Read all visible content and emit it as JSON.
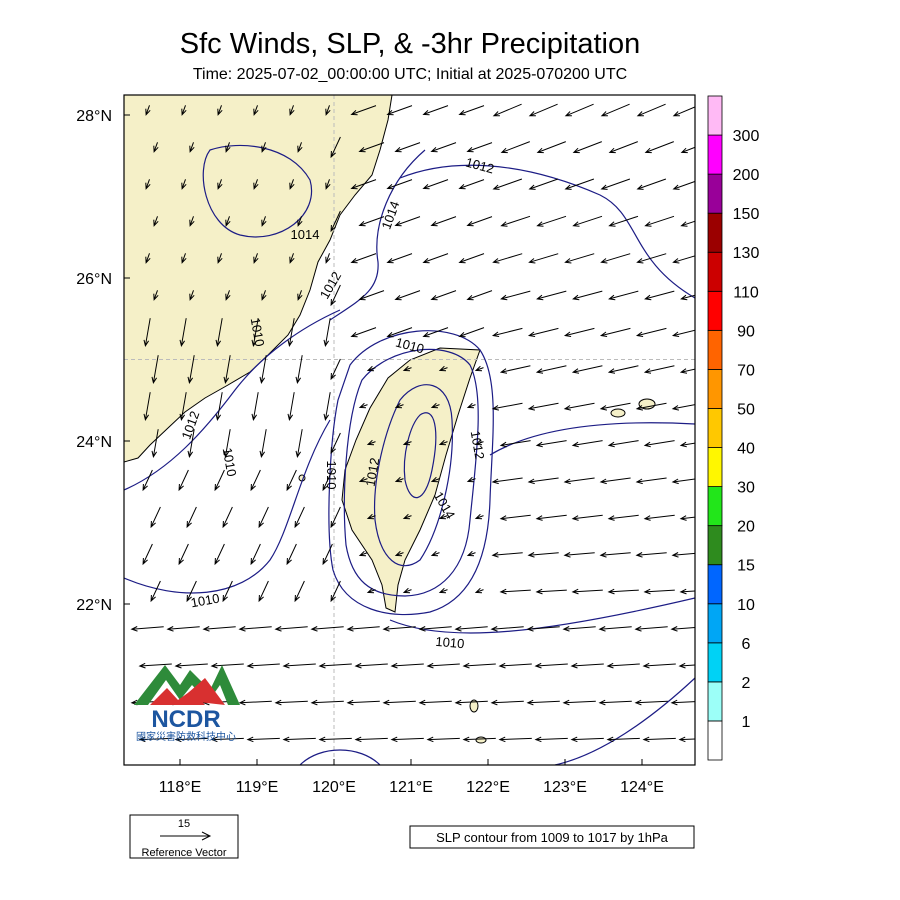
{
  "header": {
    "title": "Sfc Winds,  SLP, & -3hr Precipitation",
    "subtitle": "Time: 2025-07-02_00:00:00 UTC; Initial at 2025-070200 UTC"
  },
  "map": {
    "lat_labels": [
      {
        "value": 28,
        "label": "28°N"
      },
      {
        "value": 26,
        "label": "26°N"
      },
      {
        "value": 24,
        "label": "24°N"
      },
      {
        "value": 22,
        "label": "22°N"
      }
    ],
    "lon_labels": [
      {
        "value": 118,
        "label": "118°E"
      },
      {
        "value": 119,
        "label": "119°E"
      },
      {
        "value": 120,
        "label": "120°E"
      },
      {
        "value": 121,
        "label": "121°E"
      },
      {
        "value": 122,
        "label": "122°E"
      },
      {
        "value": 123,
        "label": "123°E"
      },
      {
        "value": 124,
        "label": "124°E"
      }
    ],
    "grid_lines": {
      "lon": [
        120
      ],
      "lat": [
        25
      ]
    },
    "contour_labels": [
      1014,
      1012,
      1014,
      1012,
      1010,
      1010,
      1012,
      1010,
      1010,
      1012,
      1014,
      1012,
      1010,
      1010
    ],
    "land_color": "#f5f0c8",
    "contour_color": "#1c1c85"
  },
  "colorbar": {
    "levels": [
      1,
      2,
      6,
      10,
      15,
      20,
      30,
      40,
      50,
      70,
      90,
      110,
      130,
      150,
      200,
      300
    ],
    "colors": [
      "#ffffff",
      "#9cfff8",
      "#00d2f5",
      "#00a6f5",
      "#0066ff",
      "#2e8b1e",
      "#22e61a",
      "#fff700",
      "#ffc800",
      "#ff9600",
      "#ff6400",
      "#ff0000",
      "#cc0000",
      "#9b0000",
      "#990099",
      "#ff00ff",
      "#ffbaf5"
    ]
  },
  "reference_vector": {
    "value": 15,
    "label": "Reference Vector"
  },
  "note": "SLP contour from 1009 to 1017 by 1hPa",
  "logo": {
    "name": "NCDR",
    "subtitle": "國家災害防救科技中心"
  }
}
